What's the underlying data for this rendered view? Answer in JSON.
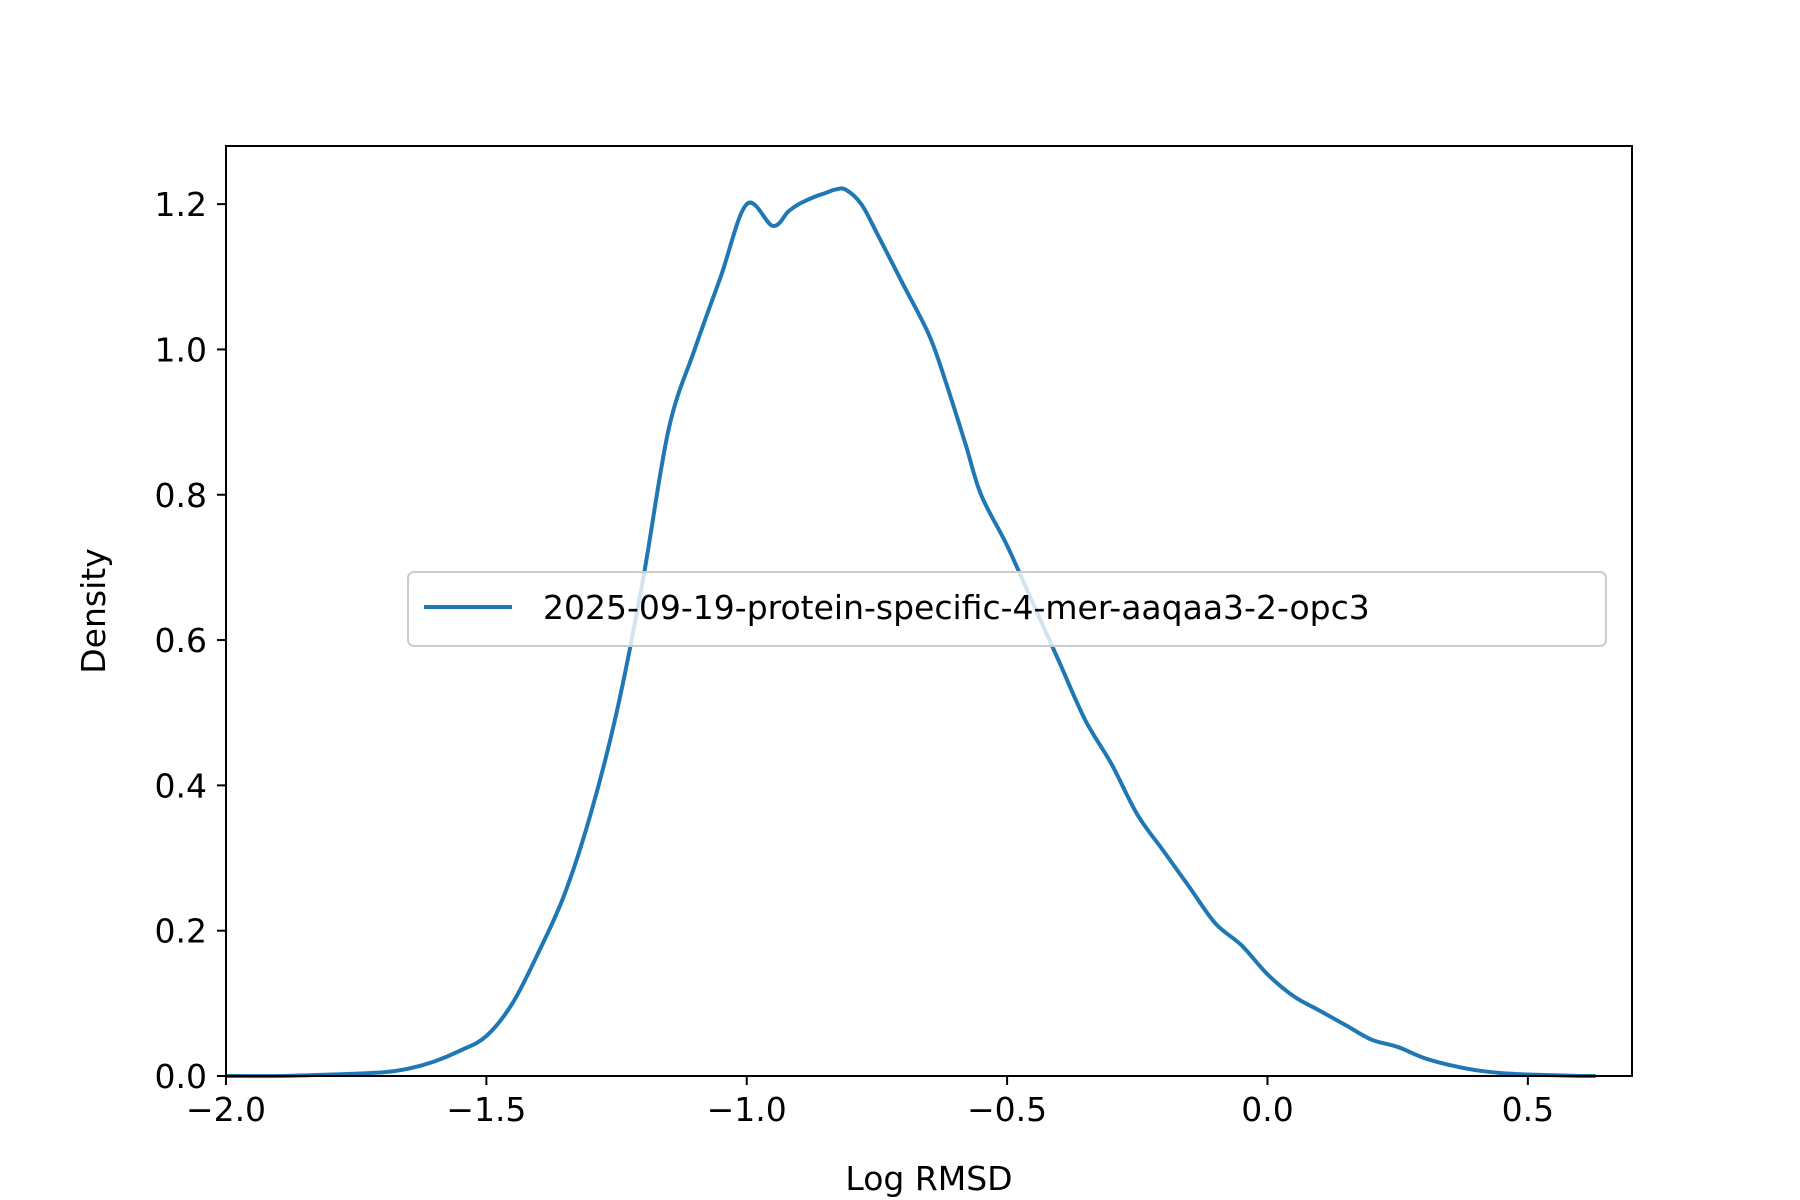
{
  "chart_data": {
    "type": "line",
    "xlabel": "Log RMSD",
    "ylabel": "Density",
    "xlim": [
      -2.0,
      0.7
    ],
    "ylim": [
      0.0,
      1.28
    ],
    "xticks": [
      {
        "value": -2.0,
        "label": "−2.0"
      },
      {
        "value": -1.5,
        "label": "−1.5"
      },
      {
        "value": -1.0,
        "label": "−1.0"
      },
      {
        "value": -0.5,
        "label": "−0.5"
      },
      {
        "value": 0.0,
        "label": "0.0"
      },
      {
        "value": 0.5,
        "label": "0.5"
      }
    ],
    "yticks": [
      {
        "value": 0.0,
        "label": "0.0"
      },
      {
        "value": 0.2,
        "label": "0.2"
      },
      {
        "value": 0.4,
        "label": "0.4"
      },
      {
        "value": 0.6,
        "label": "0.6"
      },
      {
        "value": 0.8,
        "label": "0.8"
      },
      {
        "value": 1.0,
        "label": "1.0"
      },
      {
        "value": 1.2,
        "label": "1.2"
      }
    ],
    "grid": false,
    "legend_position": "center-right",
    "series": [
      {
        "name": "2025-09-19-protein-specific-4-mer-aaqaa3-2-opc3",
        "color": "#1f77b4",
        "x": [
          -2.0,
          -1.9,
          -1.8,
          -1.7,
          -1.65,
          -1.6,
          -1.55,
          -1.5,
          -1.45,
          -1.4,
          -1.35,
          -1.3,
          -1.25,
          -1.2,
          -1.15,
          -1.1,
          -1.05,
          -1.0,
          -0.95,
          -0.92,
          -0.9,
          -0.87,
          -0.85,
          -0.83,
          -0.81,
          -0.78,
          -0.75,
          -0.7,
          -0.65,
          -0.62,
          -0.58,
          -0.55,
          -0.5,
          -0.45,
          -0.4,
          -0.35,
          -0.3,
          -0.25,
          -0.2,
          -0.15,
          -0.1,
          -0.05,
          0.0,
          0.05,
          0.1,
          0.15,
          0.2,
          0.25,
          0.3,
          0.35,
          0.4,
          0.45,
          0.5,
          0.55,
          0.6,
          0.63
        ],
        "y": [
          0.0,
          0.0,
          0.002,
          0.005,
          0.01,
          0.02,
          0.035,
          0.055,
          0.1,
          0.17,
          0.25,
          0.36,
          0.5,
          0.68,
          0.89,
          1.0,
          1.1,
          1.2,
          1.17,
          1.19,
          1.2,
          1.21,
          1.215,
          1.22,
          1.22,
          1.2,
          1.16,
          1.09,
          1.02,
          0.96,
          0.87,
          0.8,
          0.73,
          0.65,
          0.57,
          0.49,
          0.43,
          0.36,
          0.31,
          0.26,
          0.21,
          0.18,
          0.14,
          0.11,
          0.09,
          0.07,
          0.05,
          0.04,
          0.025,
          0.015,
          0.008,
          0.004,
          0.002,
          0.001,
          0.0,
          0.0
        ]
      }
    ]
  }
}
